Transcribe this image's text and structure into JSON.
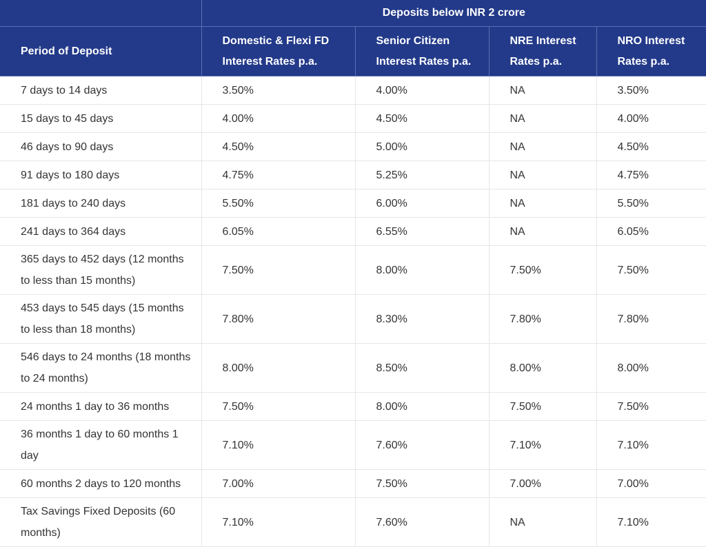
{
  "table": {
    "group_header": "Deposits below INR 2 crore",
    "columns": [
      "Period of Deposit",
      "Domestic & Flexi FD Interest Rates p.a.",
      "Senior Citizen Interest Rates p.a.",
      "NRE Interest Rates p.a.",
      "NRO Interest Rates p.a."
    ],
    "rows": [
      [
        "7 days to 14 days",
        "3.50%",
        "4.00%",
        "NA",
        "3.50%"
      ],
      [
        "15 days to 45 days",
        "4.00%",
        "4.50%",
        "NA",
        "4.00%"
      ],
      [
        "46 days to 90 days",
        "4.50%",
        "5.00%",
        "NA",
        "4.50%"
      ],
      [
        "91 days to 180 days",
        "4.75%",
        "5.25%",
        "NA",
        "4.75%"
      ],
      [
        "181 days to 240 days",
        "5.50%",
        "6.00%",
        "NA",
        "5.50%"
      ],
      [
        "241 days to 364 days",
        "6.05%",
        "6.55%",
        "NA",
        "6.05%"
      ],
      [
        "365 days to 452 days (12 months to less than 15 months)",
        "7.50%",
        "8.00%",
        "7.50%",
        "7.50%"
      ],
      [
        "453 days to 545 days (15 months to less than 18 months)",
        "7.80%",
        "8.30%",
        "7.80%",
        "7.80%"
      ],
      [
        "546 days to 24 months (18 months to 24 months)",
        "8.00%",
        "8.50%",
        "8.00%",
        "8.00%"
      ],
      [
        "24 months 1 day to 36 months",
        "7.50%",
        "8.00%",
        "7.50%",
        "7.50%"
      ],
      [
        "36 months 1 day to 60 months 1 day",
        "7.10%",
        "7.60%",
        "7.10%",
        "7.10%"
      ],
      [
        "60 months 2 days to 120 months",
        "7.00%",
        "7.50%",
        "7.00%",
        "7.00%"
      ],
      [
        "Tax Savings Fixed Deposits (60 months)",
        "7.10%",
        "7.60%",
        "NA",
        "7.10%"
      ]
    ]
  },
  "colors": {
    "header_bg": "#233a8a",
    "header_text": "#ffffff",
    "body_text": "#333333",
    "grid_line": "#e6e6e6"
  }
}
